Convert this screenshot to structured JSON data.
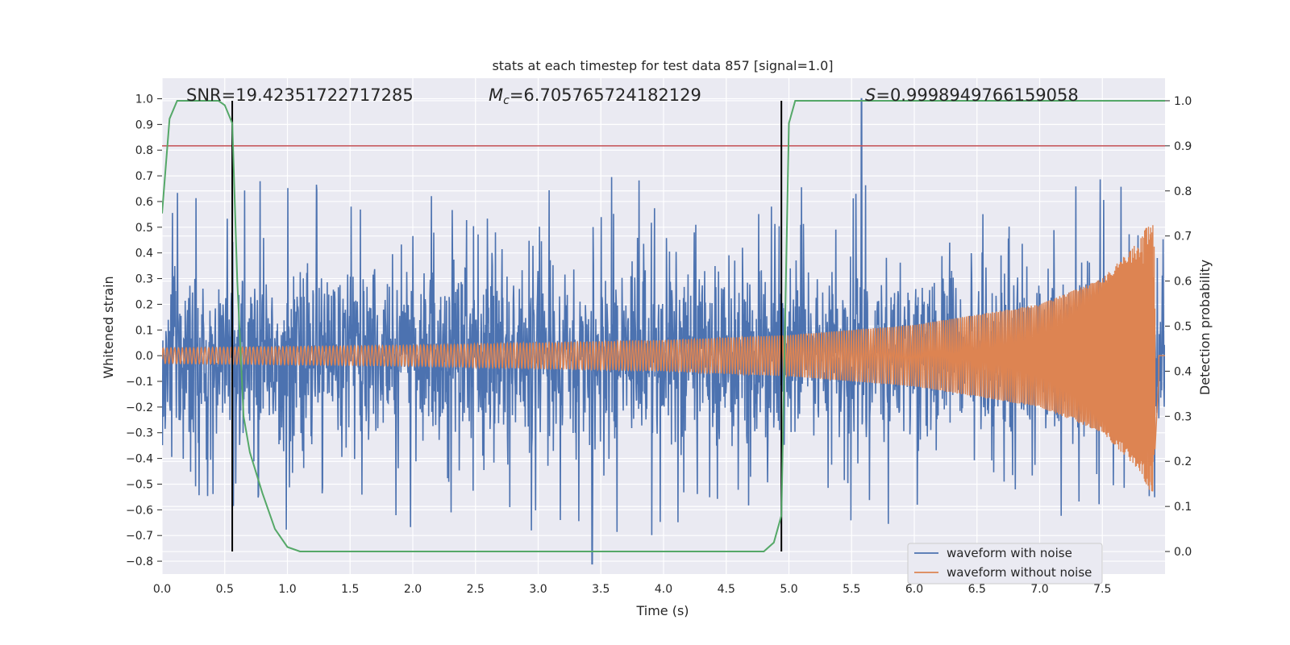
{
  "chart_data": {
    "type": "line",
    "title": "stats at each timestep for test data 857 [signal=1.0]",
    "xlabel": "Time (s)",
    "ylabel": "Whitened strain",
    "y2label": "Detection probability",
    "xlim": [
      0.0,
      8.0
    ],
    "ylim": [
      -0.85,
      1.08
    ],
    "y2lim": [
      -0.05,
      1.05
    ],
    "xticks": [
      "0.0",
      "0.5",
      "1.0",
      "1.5",
      "2.0",
      "2.5",
      "3.0",
      "3.5",
      "4.0",
      "4.5",
      "5.0",
      "5.5",
      "6.0",
      "6.5",
      "7.0",
      "7.5"
    ],
    "yticks": [
      "-0.8",
      "-0.7",
      "-0.6",
      "-0.5",
      "-0.4",
      "-0.3",
      "-0.2",
      "-0.1",
      "0.0",
      "0.1",
      "0.2",
      "0.3",
      "0.4",
      "0.5",
      "0.6",
      "0.7",
      "0.8",
      "0.9",
      "1.0"
    ],
    "y2ticks": [
      "0.0",
      "0.1",
      "0.2",
      "0.3",
      "0.4",
      "0.5",
      "0.6",
      "0.7",
      "0.8",
      "0.9",
      "1.0"
    ],
    "grid": true,
    "legend_position": "lower-right",
    "annotations": {
      "snr_label": "SNR=19.42351722717285",
      "mc_symbol": "M",
      "mc_sub": "c",
      "mc_value": "=6.705765724182129",
      "s_symbol": "S",
      "s_value": "=0.9998949766159058"
    },
    "threshold_line": {
      "axis": "y2",
      "value": 0.9,
      "color": "#c44e52"
    },
    "vertical_markers": [
      0.56,
      4.94
    ],
    "colors": {
      "noise": "#4c72b0",
      "signal": "#dd8452",
      "probability": "#55a868",
      "plot_bg": "#eaeaf2",
      "grid": "#ffffff"
    },
    "series": [
      {
        "name": "waveform with noise",
        "axis": "y",
        "summary": {
          "typical_range": [
            -0.45,
            0.45
          ],
          "max": 1.0,
          "max_at": 5.58,
          "min": -0.81,
          "min_at": 3.43
        }
      },
      {
        "name": "waveform without noise",
        "axis": "y",
        "summary": {
          "chirp_envelope": [
            [
              0.0,
              0.03
            ],
            [
              2.0,
              0.04
            ],
            [
              4.0,
              0.06
            ],
            [
              5.0,
              0.08
            ],
            [
              6.0,
              0.12
            ],
            [
              7.0,
              0.2
            ],
            [
              7.5,
              0.3
            ],
            [
              7.8,
              0.45
            ],
            [
              7.9,
              0.55
            ],
            [
              7.96,
              0.0
            ]
          ],
          "merger_time": 7.9
        }
      },
      {
        "axis": "y2",
        "x": [
          0.0,
          0.06,
          0.12,
          0.2,
          0.3,
          0.45,
          0.5,
          0.56,
          0.6,
          0.65,
          0.7,
          0.8,
          0.9,
          1.0,
          1.1,
          1.5,
          2.0,
          3.0,
          4.0,
          4.5,
          4.8,
          4.88,
          4.94,
          5.0,
          5.05,
          5.1,
          6.0,
          7.0,
          8.0
        ],
        "values": [
          0.75,
          0.96,
          1.0,
          1.0,
          1.0,
          1.0,
          0.99,
          0.95,
          0.6,
          0.3,
          0.22,
          0.13,
          0.05,
          0.01,
          0.0,
          0.0,
          0.0,
          0.0,
          0.0,
          0.0,
          0.0,
          0.02,
          0.08,
          0.95,
          1.0,
          1.0,
          1.0,
          1.0,
          1.0
        ]
      }
    ]
  }
}
